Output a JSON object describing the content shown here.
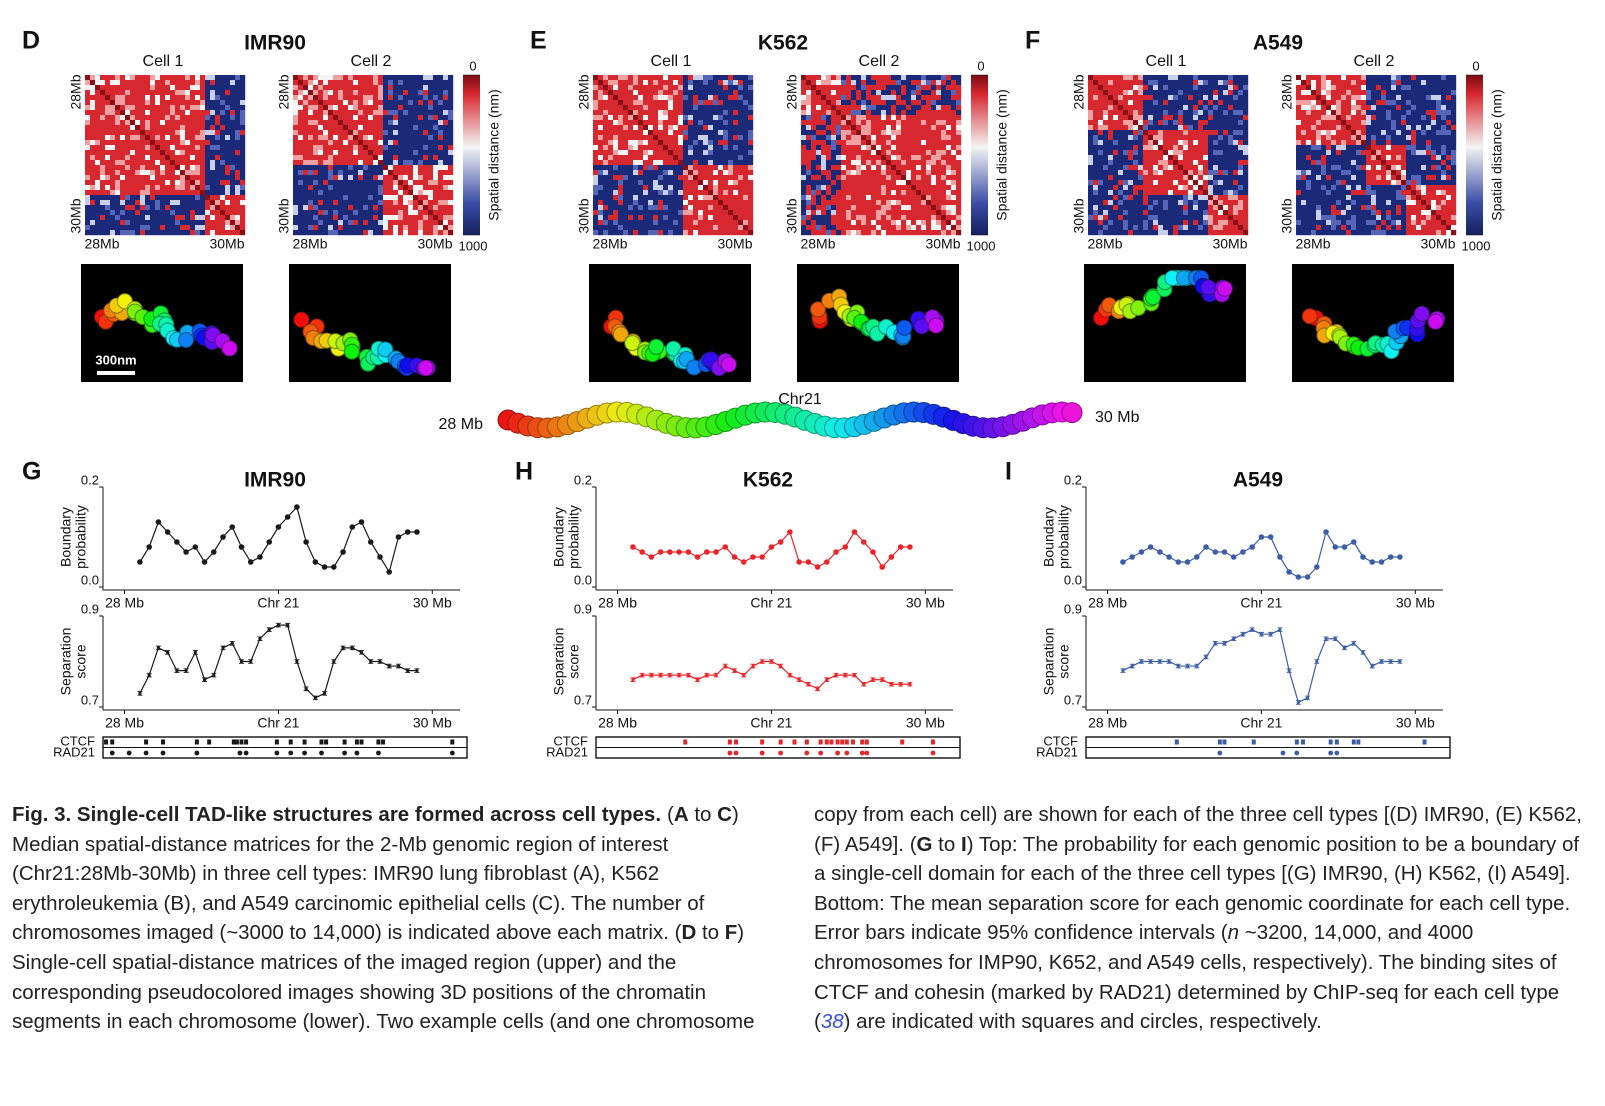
{
  "top_panels": [
    {
      "letter": "D",
      "title": "IMR90",
      "cells": [
        "Cell 1",
        "Cell 2"
      ],
      "axis_start": "28Mb",
      "axis_end": "30Mb",
      "colorbar": {
        "ticks": [
          0,
          1000
        ],
        "label": "Spatial distance (nm)"
      }
    },
    {
      "letter": "E",
      "title": "K562",
      "cells": [
        "Cell 1",
        "Cell 2"
      ],
      "axis_start": "28Mb",
      "axis_end": "30Mb",
      "colorbar": {
        "ticks": [
          0,
          1000
        ],
        "label": "Spatial distance (nm)"
      }
    },
    {
      "letter": "F",
      "title": "A549",
      "cells": [
        "Cell 1",
        "Cell 2"
      ],
      "axis_start": "28Mb",
      "axis_end": "30Mb",
      "colorbar": {
        "ticks": [
          0,
          1000
        ],
        "label": "Spatial distance (nm)"
      }
    }
  ],
  "scale_bar": "300nm",
  "chain": {
    "start": "28 Mb",
    "label": "Chr21",
    "end": "30 Mb"
  },
  "bottom_panels": [
    {
      "letter": "G",
      "title": "IMR90",
      "tracks": [
        {
          "name": "CTCF",
          "positions": [
            27.88,
            27.92,
            28.14,
            28.25,
            28.47,
            28.55,
            28.71,
            28.73,
            28.76,
            28.79,
            28.99,
            29.08,
            29.17,
            29.28,
            29.31,
            29.43,
            29.51,
            29.54,
            29.65,
            29.68,
            30.13
          ]
        },
        {
          "name": "RAD21",
          "positions": [
            27.92,
            28.03,
            28.14,
            28.25,
            28.47,
            28.75,
            28.79,
            28.99,
            29.08,
            29.17,
            29.28,
            29.43,
            29.51,
            29.65,
            30.13
          ]
        }
      ]
    },
    {
      "letter": "H",
      "title": "K562",
      "tracks": [
        {
          "name": "CTCF",
          "positions": [
            28.44,
            28.73,
            28.77,
            28.94,
            29.06,
            29.15,
            29.23,
            29.32,
            29.36,
            29.39,
            29.43,
            29.46,
            29.49,
            29.53,
            29.59,
            29.62,
            29.85,
            30.05
          ]
        },
        {
          "name": "RAD21",
          "positions": [
            28.73,
            28.77,
            28.94,
            29.06,
            29.23,
            29.32,
            29.43,
            29.49,
            29.59,
            29.62,
            30.05
          ]
        }
      ]
    },
    {
      "letter": "I",
      "title": "A549",
      "tracks": [
        {
          "name": "CTCF",
          "positions": [
            28.45,
            28.73,
            28.76,
            28.95,
            29.23,
            29.27,
            29.45,
            29.49,
            29.6,
            29.63,
            30.06
          ]
        },
        {
          "name": "RAD21",
          "positions": [
            28.73,
            29.14,
            29.23,
            29.45,
            29.49
          ]
        }
      ]
    }
  ],
  "chart_data": [
    {
      "type": "line",
      "ylabel": [
        "Boundary",
        "probability"
      ],
      "x": [
        28.1,
        28.16,
        28.22,
        28.28,
        28.34,
        28.4,
        28.46,
        28.52,
        28.58,
        28.64,
        28.7,
        28.76,
        28.82,
        28.88,
        28.94,
        29,
        29.06,
        29.12,
        29.18,
        29.24,
        29.3,
        29.36,
        29.42,
        29.48,
        29.54,
        29.6,
        29.66,
        29.72,
        29.78,
        29.84,
        29.9
      ],
      "xlim": [
        27.86,
        30.18
      ],
      "xticks": [
        {
          "value": 28,
          "label": "28 Mb"
        },
        {
          "value": 29,
          "label": "Chr 21"
        },
        {
          "value": 30,
          "label": "30 Mb"
        }
      ],
      "ylim": [
        0,
        0.2
      ],
      "yticks": [
        {
          "value": 0,
          "label": "0.0"
        },
        0.2
      ],
      "series": [
        {
          "color": "#1a1a1a",
          "values": [
            0.05,
            0.08,
            0.13,
            0.11,
            0.09,
            0.07,
            0.08,
            0.05,
            0.07,
            0.1,
            0.12,
            0.08,
            0.05,
            0.06,
            0.09,
            0.12,
            0.14,
            0.16,
            0.09,
            0.05,
            0.04,
            0.04,
            0.07,
            0.12,
            0.13,
            0.09,
            0.06,
            0.03,
            0.1,
            0.11,
            0.11
          ]
        }
      ]
    },
    {
      "type": "line",
      "ylabel": [
        "Separation",
        "score"
      ],
      "x": [
        28.1,
        28.16,
        28.22,
        28.28,
        28.34,
        28.4,
        28.46,
        28.52,
        28.58,
        28.64,
        28.7,
        28.76,
        28.82,
        28.88,
        28.94,
        29,
        29.06,
        29.12,
        29.18,
        29.24,
        29.3,
        29.36,
        29.42,
        29.48,
        29.54,
        29.6,
        29.66,
        29.72,
        29.78,
        29.84,
        29.9
      ],
      "xlim": [
        27.86,
        30.18
      ],
      "xticks": [
        {
          "value": 28,
          "label": "28 Mb"
        },
        {
          "value": 29,
          "label": "Chr 21"
        },
        {
          "value": 30,
          "label": "30 Mb"
        }
      ],
      "ylim": [
        0.7,
        0.9
      ],
      "yticks": [
        0.7,
        0.9
      ],
      "series": [
        {
          "color": "#1a1a1a",
          "values": [
            0.73,
            0.77,
            0.83,
            0.82,
            0.78,
            0.78,
            0.82,
            0.76,
            0.77,
            0.83,
            0.84,
            0.8,
            0.8,
            0.85,
            0.87,
            0.88,
            0.88,
            0.8,
            0.74,
            0.72,
            0.73,
            0.8,
            0.83,
            0.83,
            0.82,
            0.8,
            0.8,
            0.79,
            0.79,
            0.78,
            0.78
          ],
          "errors": [
            0.004,
            0.004,
            0.004,
            0.004,
            0.004,
            0.004,
            0.004,
            0.004,
            0.004,
            0.004,
            0.004,
            0.004,
            0.004,
            0.004,
            0.004,
            0.004,
            0.004,
            0.004,
            0.004,
            0.004,
            0.004,
            0.004,
            0.004,
            0.004,
            0.004,
            0.004,
            0.004,
            0.004,
            0.004,
            0.004,
            0.004
          ]
        }
      ]
    },
    {
      "type": "line",
      "ylabel": [
        "Boundary",
        "probability"
      ],
      "x": [
        28.1,
        28.16,
        28.22,
        28.28,
        28.34,
        28.4,
        28.46,
        28.52,
        28.58,
        28.64,
        28.7,
        28.76,
        28.82,
        28.88,
        28.94,
        29,
        29.06,
        29.12,
        29.18,
        29.24,
        29.3,
        29.36,
        29.42,
        29.48,
        29.54,
        29.6,
        29.66,
        29.72,
        29.78,
        29.84,
        29.9
      ],
      "xlim": [
        27.86,
        30.18
      ],
      "xticks": [
        {
          "value": 28,
          "label": "28 Mb"
        },
        {
          "value": 29,
          "label": "Chr 21"
        },
        {
          "value": 30,
          "label": "30 Mb"
        }
      ],
      "ylim": [
        0,
        0.2
      ],
      "yticks": [
        {
          "value": 0,
          "label": "0.0"
        },
        0.2
      ],
      "series": [
        {
          "color": "#e8262a",
          "values": [
            0.08,
            0.07,
            0.06,
            0.07,
            0.07,
            0.07,
            0.07,
            0.06,
            0.07,
            0.07,
            0.08,
            0.06,
            0.05,
            0.06,
            0.06,
            0.08,
            0.09,
            0.11,
            0.05,
            0.05,
            0.04,
            0.05,
            0.07,
            0.08,
            0.11,
            0.09,
            0.07,
            0.04,
            0.06,
            0.08,
            0.08
          ]
        }
      ]
    },
    {
      "type": "line",
      "ylabel": [
        "Separation",
        "score"
      ],
      "x": [
        28.1,
        28.16,
        28.22,
        28.28,
        28.34,
        28.4,
        28.46,
        28.52,
        28.58,
        28.64,
        28.7,
        28.76,
        28.82,
        28.88,
        28.94,
        29,
        29.06,
        29.12,
        29.18,
        29.24,
        29.3,
        29.36,
        29.42,
        29.48,
        29.54,
        29.6,
        29.66,
        29.72,
        29.78,
        29.84,
        29.9
      ],
      "xlim": [
        27.86,
        30.18
      ],
      "xticks": [
        {
          "value": 28,
          "label": "28 Mb"
        },
        {
          "value": 29,
          "label": "Chr 21"
        },
        {
          "value": 30,
          "label": "30 Mb"
        }
      ],
      "ylim": [
        0.7,
        0.9
      ],
      "yticks": [
        0.7,
        0.9
      ],
      "series": [
        {
          "color": "#e8262a",
          "values": [
            0.76,
            0.77,
            0.77,
            0.77,
            0.77,
            0.77,
            0.77,
            0.76,
            0.77,
            0.77,
            0.79,
            0.78,
            0.77,
            0.79,
            0.8,
            0.8,
            0.79,
            0.77,
            0.76,
            0.75,
            0.74,
            0.76,
            0.77,
            0.77,
            0.77,
            0.75,
            0.76,
            0.76,
            0.75,
            0.75,
            0.75
          ],
          "errors": [
            0.004,
            0.004,
            0.004,
            0.004,
            0.004,
            0.004,
            0.004,
            0.004,
            0.004,
            0.004,
            0.004,
            0.004,
            0.004,
            0.004,
            0.004,
            0.004,
            0.004,
            0.004,
            0.004,
            0.004,
            0.004,
            0.004,
            0.004,
            0.004,
            0.004,
            0.004,
            0.004,
            0.004,
            0.004,
            0.004,
            0.004
          ]
        }
      ]
    },
    {
      "type": "line",
      "ylabel": [
        "Boundary",
        "probability"
      ],
      "x": [
        28.1,
        28.16,
        28.22,
        28.28,
        28.34,
        28.4,
        28.46,
        28.52,
        28.58,
        28.64,
        28.7,
        28.76,
        28.82,
        28.88,
        28.94,
        29,
        29.06,
        29.12,
        29.18,
        29.24,
        29.3,
        29.36,
        29.42,
        29.48,
        29.54,
        29.6,
        29.66,
        29.72,
        29.78,
        29.84,
        29.9
      ],
      "xlim": [
        27.86,
        30.18
      ],
      "xticks": [
        {
          "value": 28,
          "label": "28 Mb"
        },
        {
          "value": 29,
          "label": "Chr 21"
        },
        {
          "value": 30,
          "label": "30 Mb"
        }
      ],
      "ylim": [
        0,
        0.2
      ],
      "yticks": [
        {
          "value": 0,
          "label": "0.0"
        },
        0.2
      ],
      "series": [
        {
          "color": "#3c5ea8",
          "values": [
            0.05,
            0.06,
            0.07,
            0.08,
            0.07,
            0.06,
            0.05,
            0.05,
            0.06,
            0.08,
            0.07,
            0.07,
            0.06,
            0.07,
            0.08,
            0.1,
            0.1,
            0.06,
            0.03,
            0.02,
            0.02,
            0.04,
            0.11,
            0.08,
            0.08,
            0.09,
            0.06,
            0.05,
            0.05,
            0.06,
            0.06
          ]
        }
      ]
    },
    {
      "type": "line",
      "ylabel": [
        "Separation",
        "score"
      ],
      "x": [
        28.1,
        28.16,
        28.22,
        28.28,
        28.34,
        28.4,
        28.46,
        28.52,
        28.58,
        28.64,
        28.7,
        28.76,
        28.82,
        28.88,
        28.94,
        29,
        29.06,
        29.12,
        29.18,
        29.24,
        29.3,
        29.36,
        29.42,
        29.48,
        29.54,
        29.6,
        29.66,
        29.72,
        29.78,
        29.84,
        29.9
      ],
      "xlim": [
        27.86,
        30.18
      ],
      "xticks": [
        {
          "value": 28,
          "label": "28 Mb"
        },
        {
          "value": 29,
          "label": "Chr 21"
        },
        {
          "value": 30,
          "label": "30 Mb"
        }
      ],
      "ylim": [
        0.7,
        0.9
      ],
      "yticks": [
        0.7,
        0.9
      ],
      "series": [
        {
          "color": "#3c5ea8",
          "values": [
            0.78,
            0.79,
            0.8,
            0.8,
            0.8,
            0.8,
            0.79,
            0.79,
            0.79,
            0.81,
            0.84,
            0.84,
            0.85,
            0.86,
            0.87,
            0.86,
            0.86,
            0.87,
            0.78,
            0.71,
            0.72,
            0.8,
            0.85,
            0.85,
            0.83,
            0.84,
            0.82,
            0.79,
            0.8,
            0.8,
            0.8
          ],
          "errors": [
            0.004,
            0.004,
            0.004,
            0.004,
            0.004,
            0.004,
            0.004,
            0.004,
            0.004,
            0.004,
            0.004,
            0.004,
            0.004,
            0.004,
            0.004,
            0.004,
            0.004,
            0.004,
            0.004,
            0.004,
            0.004,
            0.004,
            0.004,
            0.004,
            0.004,
            0.004,
            0.004,
            0.004,
            0.004,
            0.004,
            0.004
          ]
        }
      ]
    }
  ],
  "caption": {
    "title": "Fig. 3. Single-cell TAD-like structures are formed across cell types.",
    "parts": [
      "(",
      "A",
      " to ",
      "C",
      ") Median spatial-distance matrices for the 2-Mb genomic region of interest (Chr21:28Mb-30Mb) in three cell types: IMR90 lung fibroblast (A), K562 erythroleukemia (B), and A549 carcinomic epithelial cells (C). The number of chromosomes imaged (~3000 to 14,000) is indicated above each matrix. (",
      "D",
      " to ",
      "F",
      ") Single-cell spatial-distance matrices of the imaged region (upper) and the corresponding pseudocolored images showing 3D positions of the chromatin segments in each chromosome (lower). Two example cells (and one chromosome copy from each cell) are shown for each of the three cell types [(D) IMR90, (E) K562, (F) A549]. (",
      "G",
      " to ",
      "I",
      ") Top: The probability for each genomic position to be a boundary of a single-cell domain for each of the three cell types [(G) IMR90, (H) K562, (I) A549]. Bottom: The mean separation score for each genomic coordinate for each cell type. Error bars indicate 95% confidence intervals (",
      "n",
      " ~3200, 14,000, and 4000 chromosomes for IMP90, K652, and A549 cells, respectively). The binding sites of CTCF and cohesin (marked by RAD21) determined by ChIP-seq for each cell type (",
      "38",
      ") are indicated with squares and circles, respectively."
    ]
  }
}
